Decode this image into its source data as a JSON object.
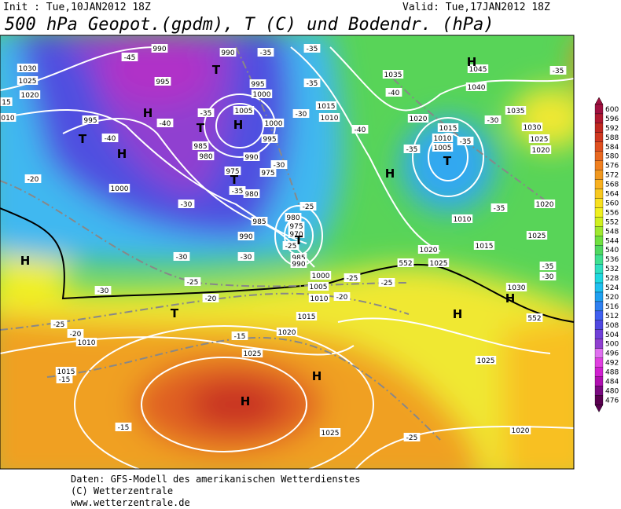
{
  "header": {
    "init": "Init : Tue,10JAN2012 18Z",
    "valid": "Valid: Tue,17JAN2012 18Z",
    "title": "500 hPa Geopot.(gpdm), T (C) und Bodendr. (hPa)"
  },
  "footer": {
    "lines": [
      "Daten: GFS-Modell des amerikanischen Wetterdienstes",
      "(C) Wetterzentrale",
      "www.wetterzentrale.de"
    ]
  },
  "map": {
    "pressure_labels": [
      "1030",
      "1025",
      "1020",
      "15",
      "010",
      "995",
      "990",
      "995",
      "990",
      "995",
      "1000",
      "1005",
      "1000",
      "995",
      "985",
      "980",
      "990",
      "975",
      "975",
      "980",
      "985",
      "990",
      "980",
      "975",
      "970",
      "985",
      "990",
      "1000",
      "1005",
      "1010",
      "1015",
      "1020",
      "1025",
      "1010",
      "1015",
      "1025",
      "1020",
      "1025",
      "1020",
      "1025",
      "1030",
      "1025",
      "1020",
      "1010",
      "1015",
      "1020",
      "1015",
      "1010",
      "1005",
      "1015",
      "1010",
      "1035",
      "1040",
      "1045",
      "1035",
      "1030",
      "1025",
      "1020",
      "1000"
    ],
    "temperature_labels": [
      "-45",
      "-40",
      "-40",
      "-35",
      "-35",
      "-35",
      "-35",
      "-30",
      "-30",
      "-35",
      "-40",
      "-40",
      "-35",
      "-30",
      "-35",
      "-35",
      "-35",
      "-35",
      "-30",
      "-30",
      "-30",
      "-30",
      "-25",
      "-25",
      "-25",
      "-30",
      "-20",
      "-25",
      "-20",
      "-25",
      "-25",
      "-20",
      "-15",
      "-15",
      "-15",
      "-25",
      "-20",
      "552",
      "552"
    ],
    "markers": [
      "T",
      "H",
      "H",
      "T",
      "H",
      "T",
      "H",
      "T",
      "H",
      "T",
      "T",
      "H",
      "T",
      "H",
      "H",
      "H",
      "H"
    ]
  },
  "legend": {
    "levels": [
      476,
      480,
      484,
      488,
      492,
      496,
      500,
      504,
      508,
      512,
      516,
      520,
      524,
      528,
      532,
      536,
      540,
      544,
      548,
      552,
      556,
      560,
      564,
      568,
      572,
      576,
      580,
      584,
      588,
      592,
      596,
      600
    ],
    "colors": [
      "#5a0050",
      "#7a0a80",
      "#b010b0",
      "#d020d0",
      "#e040e0",
      "#e070f0",
      "#9040d0",
      "#7040d8",
      "#5048e0",
      "#4060f0",
      "#3080f0",
      "#20a0f0",
      "#20c0f0",
      "#20d8e0",
      "#30e0c0",
      "#40e090",
      "#50d860",
      "#70e040",
      "#a0e830",
      "#d0f020",
      "#f0f020",
      "#f8e020",
      "#f8c820",
      "#f8b020",
      "#f09820",
      "#f08020",
      "#e86820",
      "#e05020",
      "#d03820",
      "#c02820",
      "#b01830",
      "#a01040"
    ]
  }
}
